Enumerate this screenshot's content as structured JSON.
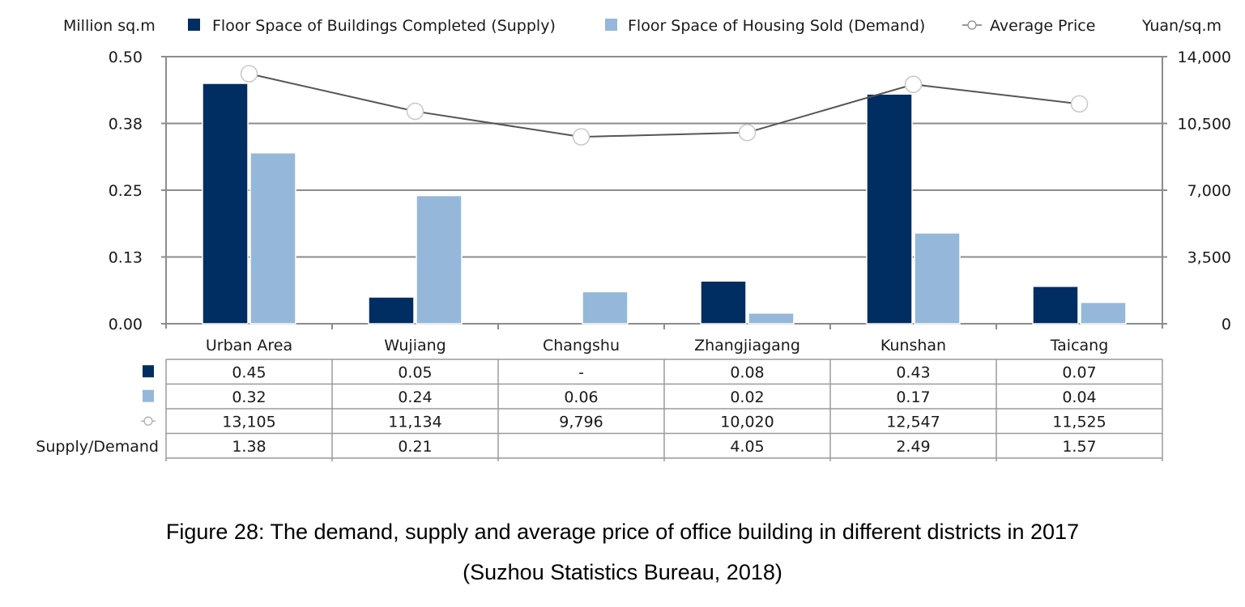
{
  "chart_data": {
    "type": "bar",
    "title": "",
    "categories": [
      "Urban Area",
      "Wujiang",
      "Changshu",
      "Zhangjiagang",
      "Kunshan",
      "Taicang"
    ],
    "series": [
      {
        "name": "Floor Space of Buildings Completed (Supply)",
        "type": "bar",
        "axis": "left",
        "color": "#002d62",
        "values": [
          0.45,
          0.05,
          null,
          0.08,
          0.43,
          0.07
        ],
        "table_labels": [
          "0.45",
          "0.05",
          "-",
          "0.08",
          "0.43",
          "0.07"
        ]
      },
      {
        "name": "Floor Space of Housing Sold (Demand)",
        "type": "bar",
        "axis": "left",
        "color": "#95b8da",
        "values": [
          0.32,
          0.24,
          0.06,
          0.02,
          0.17,
          0.04
        ],
        "table_labels": [
          "0.32",
          "0.24",
          "0.06",
          "0.02",
          "0.17",
          "0.04"
        ]
      },
      {
        "name": "Average Price",
        "type": "line",
        "axis": "right",
        "color": "#555555",
        "values": [
          13105,
          11134,
          9796,
          10020,
          12547,
          11525
        ],
        "table_labels": [
          "13,105",
          "11,134",
          "9,796",
          "10,020",
          "12,547",
          "11,525"
        ]
      }
    ],
    "extra_rows": [
      {
        "name": "Supply/Demand",
        "values": [
          "1.38",
          "0.21",
          "",
          "4.05",
          "2.49",
          "1.57"
        ]
      }
    ],
    "ylabel_left": "Million sq.m",
    "ylabel_right": "Yuan/sq.m",
    "ylim_left": [
      0,
      0.5
    ],
    "yticks_left": [
      "0.00",
      "0.13",
      "0.25",
      "0.38",
      "0.50"
    ],
    "ylim_right": [
      0,
      14000
    ],
    "yticks_right": [
      "0",
      "3,500",
      "7,000",
      "10,500",
      "14,000"
    ],
    "grid": true,
    "legend_position": "top",
    "data_table": true
  },
  "caption": {
    "line1": "Figure 28: The demand, supply and average price of office building in different districts in 2017",
    "line2": "(Suzhou Statistics Bureau, 2018)"
  }
}
